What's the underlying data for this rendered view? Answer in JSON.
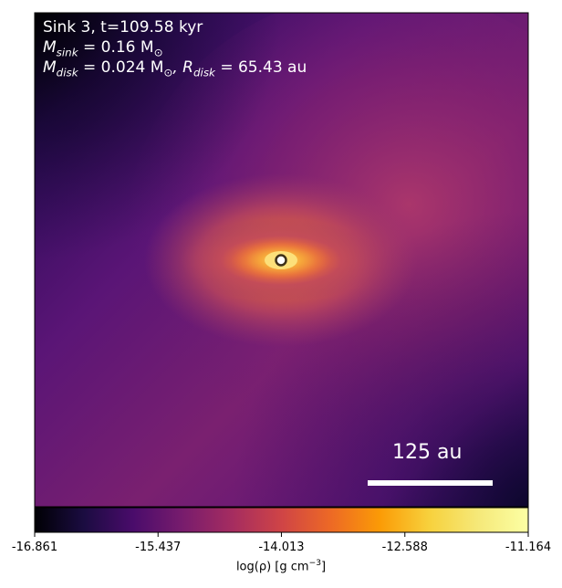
{
  "chart_data": {
    "type": "heatmap",
    "title": "Sink 3, t=109.58 kyr",
    "annotations": {
      "sink_mass": "M_sink = 0.16 M_⊙",
      "disk_line": "M_disk = 0.024 M_⊙, R_disk = 65.43 au",
      "scale_bar": "125 au"
    },
    "colorbar": {
      "label": "log(ρ) [g cm⁻³]",
      "range": [
        -16.861,
        -11.164
      ],
      "ticks": [
        "-16.861",
        "-15.437",
        "-14.013",
        "-12.588",
        "-11.164"
      ],
      "colormap": "inferno"
    },
    "sink_marker": {
      "x": 0,
      "y": 0
    },
    "scale_bar_length_au": 125
  },
  "text": {
    "title": "Sink 3, t=109.58 kyr",
    "msink_prefix": "M",
    "msink_sub": "sink",
    "msink_value": " = 0.16 M",
    "msink_sun": "⊙",
    "mdisk_prefix": "M",
    "mdisk_sub": "disk",
    "mdisk_value": " = 0.024 M",
    "mdisk_sun": "⊙",
    "rdisk_prefix": ", R",
    "rdisk_sub": "disk",
    "rdisk_value": " = 65.43 au",
    "scale_label": "125 au",
    "cbar_label_prefix": "log(ρ) [g cm",
    "cbar_label_sup": "−3",
    "cbar_label_suffix": "]"
  },
  "colors": {
    "background_dark": "#1a0a3a",
    "disk_core": "#f8c84a",
    "marker_ring": "#4a3a1a",
    "scale_bar": "#ffffff"
  }
}
